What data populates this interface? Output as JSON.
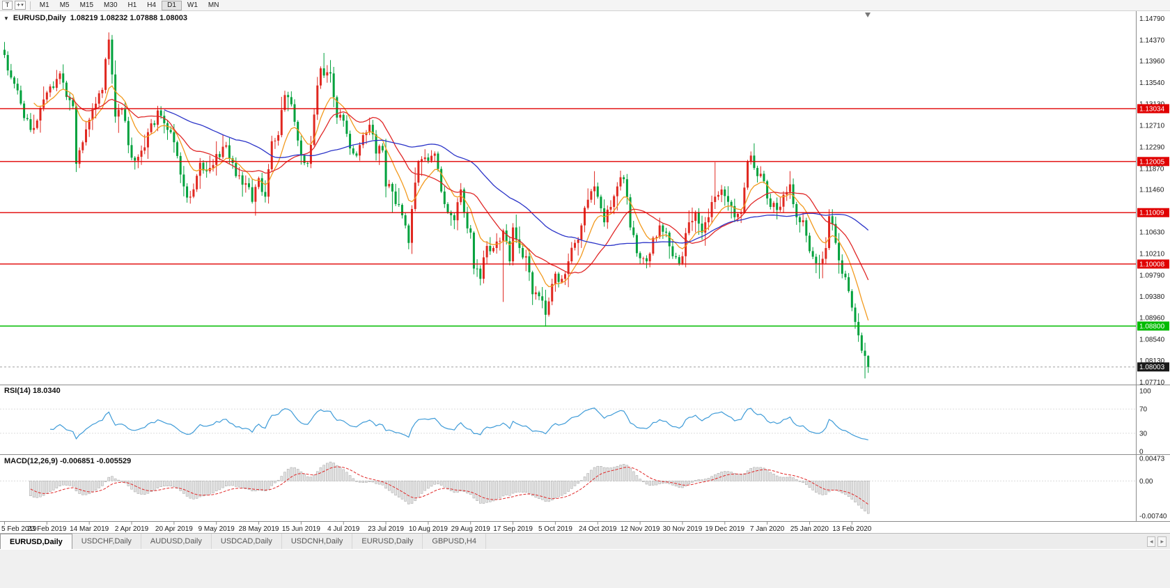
{
  "toolbar": {
    "template_button_label": "T",
    "timeframes": [
      {
        "label": "M1",
        "active": false
      },
      {
        "label": "M5",
        "active": false
      },
      {
        "label": "M15",
        "active": false
      },
      {
        "label": "M30",
        "active": false
      },
      {
        "label": "H1",
        "active": false
      },
      {
        "label": "H4",
        "active": false
      },
      {
        "label": "D1",
        "active": true
      },
      {
        "label": "W1",
        "active": false
      },
      {
        "label": "MN",
        "active": false
      }
    ]
  },
  "chart": {
    "header": {
      "symbol": "EURUSD,Daily",
      "ohlc": "1.08219 1.08232 1.07888 1.08003"
    },
    "price_range": {
      "top": 1.1492,
      "bottom": 1.0766
    },
    "y_axis_labels": [
      "1.14790",
      "1.14370",
      "1.13960",
      "1.13540",
      "1.13130",
      "1.12710",
      "1.12290",
      "1.11870",
      "1.11460",
      "1.11040",
      "1.10630",
      "1.10210",
      "1.09790",
      "1.09380",
      "1.08960",
      "1.08540",
      "1.08130",
      "1.07710"
    ],
    "hlines": [
      {
        "price": 1.13034,
        "label": "1.13034",
        "color": "#e00000"
      },
      {
        "price": 1.12005,
        "label": "1.12005",
        "color": "#e00000"
      },
      {
        "price": 1.11009,
        "label": "1.11009",
        "color": "#e00000"
      },
      {
        "price": 1.10008,
        "label": "1.10008",
        "color": "#e00000"
      },
      {
        "price": 1.088,
        "label": "1.08800",
        "color": "#00bb00"
      }
    ],
    "current_price": {
      "value": 1.08003,
      "label": "1.08003"
    }
  },
  "rsi": {
    "label": "RSI(14) 18.0340",
    "period": 14,
    "last_value": 18.034,
    "color": "#3e9bd8",
    "levels": [
      {
        "label": "100",
        "value": 100
      },
      {
        "label": "70",
        "value": 70,
        "line": true
      },
      {
        "label": "30",
        "value": 30,
        "line": true
      },
      {
        "label": "0",
        "value": 0
      }
    ]
  },
  "macd": {
    "label": "MACD(12,26,9) -0.006851 -0.005529",
    "fast": 12,
    "slow": 26,
    "signal": 9,
    "range": {
      "max": 0.0052,
      "min": -0.0082
    },
    "histogram_color": "#e3e3e3",
    "histogram_border": "#a0a0a0",
    "signal_color": "#e02828",
    "levels": [
      {
        "label": "0.00473",
        "value": 0.00473
      },
      {
        "label": "0.00",
        "value": 0
      },
      {
        "label": "-0.00740",
        "value": -0.0074
      }
    ]
  },
  "x_axis_labels": [
    "5 Feb 2019",
    "23 Feb 2019",
    "14 Mar 2019",
    "2 Apr 2019",
    "20 Apr 2019",
    "9 May 2019",
    "28 May 2019",
    "15 Jun 2019",
    "4 Jul 2019",
    "23 Jul 2019",
    "10 Aug 2019",
    "29 Aug 2019",
    "17 Sep 2019",
    "5 Oct 2019",
    "24 Oct 2019",
    "12 Nov 2019",
    "30 Nov 2019",
    "19 Dec 2019",
    "7 Jan 2020",
    "25 Jan 2020",
    "13 Feb 2020"
  ],
  "tabs": [
    {
      "label": "EURUSD,Daily",
      "active": true
    },
    {
      "label": "USDCHF,Daily",
      "active": false
    },
    {
      "label": "AUDUSD,Daily",
      "active": false
    },
    {
      "label": "USDCAD,Daily",
      "active": false
    },
    {
      "label": "USDCNH,Daily",
      "active": false
    },
    {
      "label": "EURUSD,Daily",
      "active": false
    },
    {
      "label": "GBPUSD,H4",
      "active": false
    }
  ],
  "chart_data": {
    "type": "candlestick",
    "symbol": "EURUSD",
    "timeframe": "Daily",
    "candle_count": 266,
    "colors": {
      "up": "#e02820",
      "down": "#00a13c"
    },
    "moving_averages": [
      {
        "type": "ema",
        "period": 10,
        "color": "#f29a1e"
      },
      {
        "type": "sma",
        "period": 20,
        "color": "#e02828"
      },
      {
        "type": "sma",
        "period": 50,
        "color": "#2b34c8"
      }
    ],
    "close_anchors": [
      [
        0,
        1.1408
      ],
      [
        3,
        1.1352
      ],
      [
        6,
        1.1285
      ],
      [
        8,
        1.1262
      ],
      [
        11,
        1.1305
      ],
      [
        13,
        1.1335
      ],
      [
        17,
        1.1372
      ],
      [
        20,
        1.132
      ],
      [
        21,
        1.1308
      ],
      [
        22,
        1.1196
      ],
      [
        24,
        1.1238
      ],
      [
        27,
        1.1302
      ],
      [
        30,
        1.134
      ],
      [
        31,
        1.14
      ],
      [
        32,
        1.1438
      ],
      [
        33,
        1.137
      ],
      [
        34,
        1.1288
      ],
      [
        36,
        1.1302
      ],
      [
        39,
        1.1208
      ],
      [
        43,
        1.1228
      ],
      [
        47,
        1.13
      ],
      [
        50,
        1.1262
      ],
      [
        52,
        1.1238
      ],
      [
        55,
        1.1152
      ],
      [
        57,
        1.1132
      ],
      [
        60,
        1.1198
      ],
      [
        63,
        1.1188
      ],
      [
        65,
        1.1215
      ],
      [
        68,
        1.1232
      ],
      [
        71,
        1.1172
      ],
      [
        74,
        1.1158
      ],
      [
        76,
        1.1122
      ],
      [
        78,
        1.1168
      ],
      [
        80,
        1.1132
      ],
      [
        82,
        1.124
      ],
      [
        84,
        1.1252
      ],
      [
        86,
        1.133
      ],
      [
        88,
        1.1312
      ],
      [
        91,
        1.1212
      ],
      [
        93,
        1.1196
      ],
      [
        95,
        1.1292
      ],
      [
        97,
        1.1382
      ],
      [
        98,
        1.1368
      ],
      [
        100,
        1.1372
      ],
      [
        102,
        1.1286
      ],
      [
        104,
        1.128
      ],
      [
        106,
        1.1226
      ],
      [
        108,
        1.1212
      ],
      [
        110,
        1.1252
      ],
      [
        112,
        1.1272
      ],
      [
        114,
        1.1216
      ],
      [
        116,
        1.1222
      ],
      [
        117,
        1.1152
      ],
      [
        119,
        1.1142
      ],
      [
        121,
        1.1116
      ],
      [
        123,
        1.1076
      ],
      [
        124,
        1.1042
      ],
      [
        125,
        1.1108
      ],
      [
        127,
        1.12
      ],
      [
        130,
        1.1202
      ],
      [
        132,
        1.1216
      ],
      [
        134,
        1.1142
      ],
      [
        136,
        1.1102
      ],
      [
        138,
        1.1086
      ],
      [
        140,
        1.1146
      ],
      [
        141,
        1.1102
      ],
      [
        143,
        1.1062
      ],
      [
        144,
        1.0992
      ],
      [
        146,
        1.0972
      ],
      [
        148,
        1.1036
      ],
      [
        150,
        1.1032
      ],
      [
        152,
        1.1046
      ],
      [
        153,
        1.1066
      ],
      [
        155,
        1.1006
      ],
      [
        156,
        1.1072
      ],
      [
        158,
        1.1032
      ],
      [
        160,
        1.1016
      ],
      [
        162,
        1.0942
      ],
      [
        164,
        1.0938
      ],
      [
        166,
        1.0902
      ],
      [
        168,
        1.0962
      ],
      [
        169,
        1.0982
      ],
      [
        171,
        1.0972
      ],
      [
        173,
        1.1006
      ],
      [
        175,
        1.1042
      ],
      [
        177,
        1.1076
      ],
      [
        179,
        1.1126
      ],
      [
        181,
        1.1152
      ],
      [
        182,
        1.1132
      ],
      [
        184,
        1.1082
      ],
      [
        186,
        1.1112
      ],
      [
        188,
        1.1152
      ],
      [
        190,
        1.1166
      ],
      [
        192,
        1.1072
      ],
      [
        194,
        1.1022
      ],
      [
        195,
        1.1012
      ],
      [
        197,
        1.1006
      ],
      [
        199,
        1.1052
      ],
      [
        201,
        1.1076
      ],
      [
        203,
        1.1062
      ],
      [
        205,
        1.1016
      ],
      [
        207,
        1.1002
      ],
      [
        208,
        1.1016
      ],
      [
        210,
        1.1082
      ],
      [
        212,
        1.1102
      ],
      [
        214,
        1.1062
      ],
      [
        216,
        1.1092
      ],
      [
        218,
        1.1132
      ],
      [
        220,
        1.1146
      ],
      [
        222,
        1.1122
      ],
      [
        224,
        1.1092
      ],
      [
        226,
        1.1102
      ],
      [
        228,
        1.12
      ],
      [
        229,
        1.1212
      ],
      [
        231,
        1.1172
      ],
      [
        233,
        1.1162
      ],
      [
        235,
        1.1112
      ],
      [
        237,
        1.1106
      ],
      [
        239,
        1.1136
      ],
      [
        241,
        1.1156
      ],
      [
        243,
        1.1092
      ],
      [
        245,
        1.1086
      ],
      [
        247,
        1.1026
      ],
      [
        250,
        1.1002
      ],
      [
        252,
        1.1032
      ],
      [
        253,
        1.1094
      ],
      [
        255,
        1.1042
      ],
      [
        257,
        1.0982
      ],
      [
        259,
        1.0948
      ],
      [
        260,
        1.0916
      ],
      [
        261,
        1.0888
      ],
      [
        262,
        1.0862
      ],
      [
        263,
        1.0832
      ],
      [
        264,
        1.0822
      ],
      [
        265,
        1.08003
      ]
    ],
    "wick_overrides": [
      [
        22,
        "l",
        1.118
      ],
      [
        32,
        "h",
        1.1452
      ],
      [
        98,
        "h",
        1.1412
      ],
      [
        119,
        "l",
        1.1101
      ],
      [
        153,
        "l",
        1.0927
      ],
      [
        166,
        "l",
        1.0879
      ],
      [
        218,
        "h",
        1.1199
      ],
      [
        264,
        "l",
        1.0778
      ]
    ],
    "last_candle": {
      "o": 1.08219,
      "h": 1.08232,
      "l": 1.07888,
      "c": 1.08003
    }
  }
}
